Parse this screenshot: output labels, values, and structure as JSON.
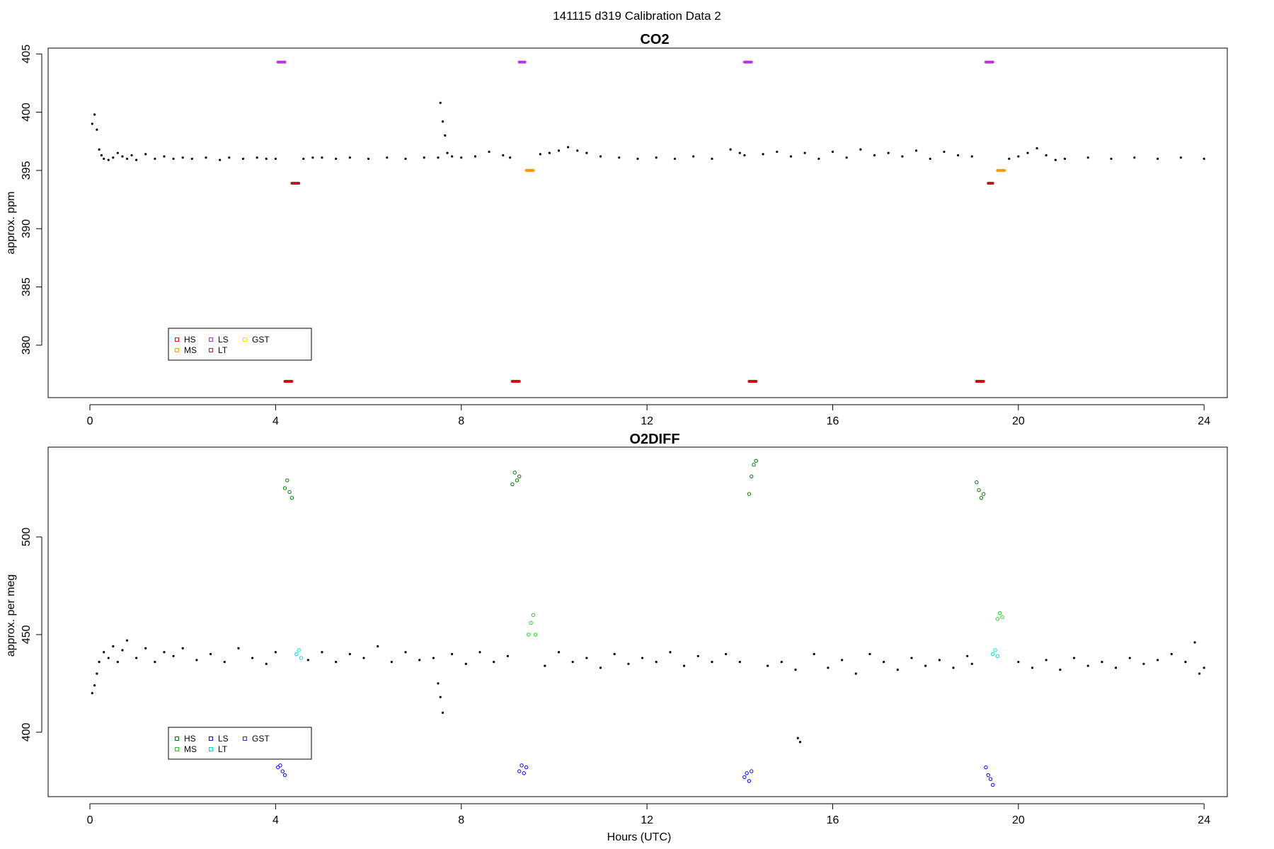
{
  "page": {
    "title": "141115   d319   Calibration Data 2"
  },
  "chart_data": [
    {
      "type": "scatter",
      "title": "CO2",
      "xlabel": "",
      "ylabel": "approx. ppm",
      "xlim": [
        -0.9,
        24.5
      ],
      "ylim": [
        375.5,
        405.5
      ],
      "xticks": [
        0,
        4,
        8,
        12,
        16,
        20,
        24
      ],
      "yticks": [
        380,
        385,
        390,
        395,
        400,
        405
      ],
      "grid": false,
      "legend": {
        "position": "bottom-left",
        "entries": [
          {
            "label": "HS",
            "color": "#dd0000"
          },
          {
            "label": "MS",
            "color": "#ff9900"
          },
          {
            "label": "LS",
            "color": "#bb33dd"
          },
          {
            "label": "LT",
            "color": "#aa2222"
          },
          {
            "label": "GST",
            "color": "#ffdd00"
          }
        ]
      },
      "cal_markers": [
        {
          "label": "LS",
          "color": "#bb33dd",
          "y": 404.3,
          "segments": [
            [
              4.05,
              4.2
            ],
            [
              9.25,
              9.37
            ],
            [
              14.1,
              14.25
            ],
            [
              19.3,
              19.45
            ]
          ]
        },
        {
          "label": "HS",
          "color": "#dd0000",
          "y": 376.9,
          "segments": [
            [
              4.2,
              4.35
            ],
            [
              9.1,
              9.25
            ],
            [
              14.2,
              14.35
            ],
            [
              19.1,
              19.25
            ]
          ]
        },
        {
          "label": "MS",
          "color": "#ff9900",
          "y": 395.0,
          "segments": [
            [
              9.4,
              9.55
            ],
            [
              19.55,
              19.7
            ]
          ]
        },
        {
          "label": "LT",
          "color": "#aa2222",
          "y": 393.9,
          "segments": [
            [
              4.35,
              4.5
            ],
            [
              19.35,
              19.45
            ]
          ]
        }
      ],
      "series": [
        {
          "name": "",
          "color": "#000000",
          "x": [
            0.05,
            0.1,
            0.15,
            0.2,
            0.25,
            0.3,
            0.4,
            0.5,
            0.6,
            0.7,
            0.8,
            0.9,
            1.0,
            1.2,
            1.4,
            1.6,
            1.8,
            2.0,
            2.2,
            2.5,
            2.8,
            3.0,
            3.3,
            3.6,
            3.8,
            4.0,
            4.6,
            4.8,
            5.0,
            5.3,
            5.6,
            6.0,
            6.4,
            6.8,
            7.2,
            7.5,
            7.55,
            7.6,
            7.65,
            7.7,
            7.8,
            8.0,
            8.3,
            8.6,
            8.9,
            9.05,
            9.7,
            9.9,
            10.1,
            10.3,
            10.5,
            10.7,
            11.0,
            11.4,
            11.8,
            12.2,
            12.6,
            13.0,
            13.4,
            13.8,
            14.0,
            14.1,
            14.5,
            14.8,
            15.1,
            15.4,
            15.7,
            16.0,
            16.3,
            16.6,
            16.9,
            17.2,
            17.5,
            17.8,
            18.1,
            18.4,
            18.7,
            19.0,
            19.8,
            20.0,
            20.2,
            20.4,
            20.6,
            20.8,
            21.0,
            21.5,
            22.0,
            22.5,
            23.0,
            23.5,
            24.0
          ],
          "y": [
            399.0,
            399.8,
            398.5,
            396.8,
            396.3,
            396.0,
            395.9,
            396.1,
            396.5,
            396.2,
            396.0,
            396.3,
            395.9,
            396.4,
            396.0,
            396.2,
            396.0,
            396.1,
            396.0,
            396.1,
            395.9,
            396.1,
            396.0,
            396.1,
            396.0,
            396.0,
            396.0,
            396.1,
            396.1,
            396.0,
            396.1,
            396.0,
            396.1,
            396.0,
            396.1,
            396.1,
            400.8,
            399.2,
            398.0,
            396.5,
            396.2,
            396.1,
            396.2,
            396.6,
            396.3,
            396.1,
            396.4,
            396.5,
            396.7,
            397.0,
            396.7,
            396.5,
            396.2,
            396.1,
            396.0,
            396.1,
            396.0,
            396.2,
            396.0,
            396.8,
            396.5,
            396.3,
            396.4,
            396.6,
            396.2,
            396.5,
            396.0,
            396.6,
            396.1,
            396.8,
            396.3,
            396.5,
            396.2,
            396.7,
            396.0,
            396.6,
            396.3,
            396.2,
            396.0,
            396.2,
            396.5,
            396.9,
            396.3,
            395.9,
            396.0,
            396.1,
            396.0,
            396.1,
            396.0,
            396.1,
            396.0
          ]
        }
      ]
    },
    {
      "type": "scatter",
      "title": "O2DIFF",
      "xlabel": "Hours (UTC)",
      "ylabel": "approx. per meg",
      "xlim": [
        -0.9,
        24.5
      ],
      "ylim": [
        367,
        546
      ],
      "xticks": [
        0,
        4,
        8,
        12,
        16,
        20,
        24
      ],
      "yticks": [
        400,
        450,
        500
      ],
      "grid": false,
      "legend": {
        "position": "bottom-left",
        "entries": [
          {
            "label": "HS",
            "color": "#007700"
          },
          {
            "label": "MS",
            "color": "#22cc22"
          },
          {
            "label": "LS",
            "color": "#0000ee"
          },
          {
            "label": "LT",
            "color": "#00dddd"
          },
          {
            "label": "GST",
            "color": "#3333aa"
          }
        ]
      },
      "cal_groups": [
        {
          "label": "HS",
          "color": "#007700",
          "x": [
            4.2,
            4.25,
            4.3,
            4.35,
            9.1,
            9.15,
            9.2,
            9.25,
            14.2,
            14.25,
            14.3,
            14.35,
            19.1,
            19.15,
            19.2,
            19.25
          ],
          "y": [
            525,
            529,
            523,
            520,
            527,
            533,
            529,
            531,
            522,
            531,
            537,
            539,
            528,
            524,
            520,
            522
          ]
        },
        {
          "label": "MS",
          "color": "#22cc22",
          "x": [
            9.45,
            9.5,
            9.55,
            9.6,
            19.55,
            19.6,
            19.65
          ],
          "y": [
            450,
            456,
            460,
            450,
            458,
            461,
            459
          ]
        },
        {
          "label": "LS",
          "color": "#0000ee",
          "x": [
            4.05,
            4.1,
            4.15,
            4.2,
            9.25,
            9.3,
            9.35,
            9.4,
            14.1,
            14.15,
            14.2,
            14.25,
            19.3,
            19.35,
            19.4,
            19.45
          ],
          "y": [
            382,
            383,
            380,
            378,
            380,
            383,
            379,
            382,
            377,
            379,
            375,
            380,
            382,
            378,
            376,
            373
          ]
        },
        {
          "label": "LT",
          "color": "#00dddd",
          "x": [
            4.45,
            4.5,
            4.55,
            19.45,
            19.5,
            19.55
          ],
          "y": [
            440,
            442,
            438,
            440,
            442,
            439
          ]
        }
      ],
      "series": [
        {
          "name": "",
          "color": "#000000",
          "x": [
            0.05,
            0.1,
            0.15,
            0.2,
            0.3,
            0.4,
            0.5,
            0.6,
            0.7,
            0.8,
            1.0,
            1.2,
            1.4,
            1.6,
            1.8,
            2.0,
            2.3,
            2.6,
            2.9,
            3.2,
            3.5,
            3.8,
            4.0,
            4.7,
            5.0,
            5.3,
            5.6,
            5.9,
            6.2,
            6.5,
            6.8,
            7.1,
            7.4,
            7.5,
            7.55,
            7.6,
            7.8,
            8.1,
            8.4,
            8.7,
            9.0,
            9.8,
            10.1,
            10.4,
            10.7,
            11.0,
            11.3,
            11.6,
            11.9,
            12.2,
            12.5,
            12.8,
            13.1,
            13.4,
            13.7,
            14.0,
            14.6,
            14.9,
            15.2,
            15.25,
            15.3,
            15.6,
            15.9,
            16.2,
            16.5,
            16.8,
            17.1,
            17.4,
            17.7,
            18.0,
            18.3,
            18.6,
            18.9,
            19.0,
            20.0,
            20.3,
            20.6,
            20.9,
            21.2,
            21.5,
            21.8,
            22.1,
            22.4,
            22.7,
            23.0,
            23.3,
            23.6,
            23.8,
            23.9,
            24.0
          ],
          "y": [
            420,
            424,
            430,
            436,
            441,
            438,
            444,
            436,
            442,
            447,
            438,
            443,
            436,
            441,
            439,
            443,
            437,
            440,
            436,
            443,
            438,
            435,
            441,
            437,
            441,
            436,
            440,
            438,
            444,
            436,
            441,
            437,
            438,
            425,
            418,
            410,
            440,
            435,
            441,
            436,
            439,
            434,
            441,
            436,
            438,
            433,
            440,
            435,
            438,
            436,
            441,
            434,
            439,
            436,
            440,
            436,
            434,
            436,
            432,
            397,
            395,
            440,
            433,
            437,
            430,
            440,
            436,
            432,
            438,
            434,
            437,
            433,
            439,
            435,
            436,
            433,
            437,
            432,
            438,
            434,
            436,
            433,
            438,
            435,
            437,
            440,
            436,
            446,
            430,
            433
          ]
        }
      ]
    }
  ]
}
